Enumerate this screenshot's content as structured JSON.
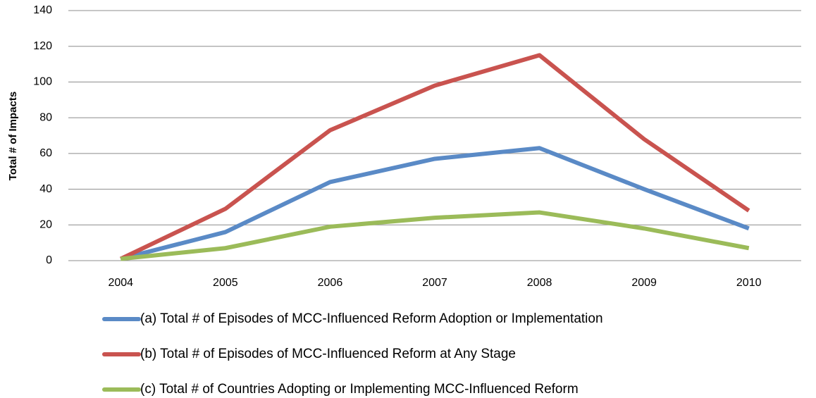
{
  "chart_data": {
    "type": "line",
    "y_label": "Total # of Impacts",
    "categories": [
      "2004",
      "2005",
      "2006",
      "2007",
      "2008",
      "2009",
      "2010"
    ],
    "series": [
      {
        "name": "(a) Total # of Episodes of MCC-Influenced Reform Adoption or Implementation",
        "color": "#5a8ac6",
        "values": [
          1,
          16,
          44,
          57,
          63,
          40,
          18
        ]
      },
      {
        "name": "(b) Total # of Episodes of MCC-Influenced Reform at Any Stage",
        "color": "#c9534f",
        "values": [
          1,
          29,
          73,
          98,
          115,
          68,
          28
        ]
      },
      {
        "name": "(c) Total # of Countries Adopting or Implementing MCC-Influenced Reform",
        "color": "#9bbb59",
        "values": [
          1,
          7,
          19,
          24,
          27,
          18,
          7
        ]
      }
    ],
    "ylim": [
      0,
      140
    ],
    "yticks": [
      0,
      20,
      40,
      60,
      80,
      100,
      120,
      140
    ],
    "grid": true,
    "legend": "bottom"
  }
}
